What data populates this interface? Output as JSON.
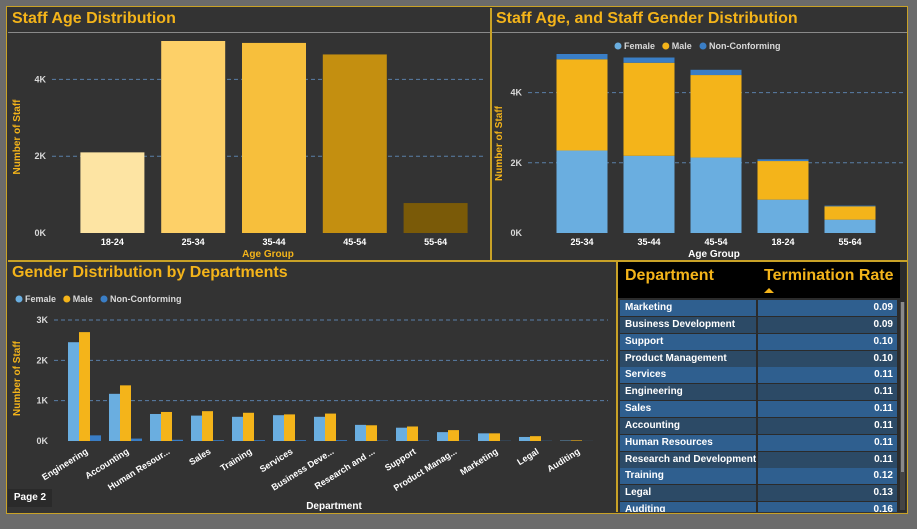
{
  "page": {
    "label": "Page 2"
  },
  "colors": {
    "female": "#6aaee0",
    "male": "#f4b41a",
    "nonconforming": "#3a7ec6",
    "title": "#f4b41a",
    "table_header_bg": "#000000"
  },
  "chart_data": [
    {
      "id": "age-dist",
      "type": "bar",
      "title": "Staff Age Distribution",
      "xlabel": "Age Group",
      "ylabel": "Number of Staff",
      "categories": [
        "18-24",
        "25-34",
        "35-44",
        "45-54",
        "55-64"
      ],
      "values": [
        2100,
        5000,
        4950,
        4650,
        780
      ],
      "bar_colors": [
        "#fde4a3",
        "#fdd068",
        "#f7bf3c",
        "#c48f10",
        "#7a5a08"
      ],
      "yticks": [
        "0K",
        "2K",
        "4K"
      ],
      "ytick_values": [
        0,
        2000,
        4000
      ],
      "ylim": [
        0,
        5000
      ],
      "grid": true
    },
    {
      "id": "age-gender",
      "type": "bar",
      "stacked": true,
      "title": "Staff Age, and Staff Gender Distribution",
      "xlabel": "Age Group",
      "ylabel": "Number of Staff",
      "categories": [
        "25-34",
        "35-44",
        "45-54",
        "18-24",
        "55-64"
      ],
      "series": [
        {
          "name": "Female",
          "values": [
            2350,
            2200,
            2150,
            950,
            380
          ]
        },
        {
          "name": "Male",
          "values": [
            2600,
            2650,
            2350,
            1100,
            380
          ]
        },
        {
          "name": "Non-Conforming",
          "values": [
            150,
            150,
            150,
            50,
            20
          ]
        }
      ],
      "yticks": [
        "0K",
        "2K",
        "4K"
      ],
      "ytick_values": [
        0,
        2000,
        4000
      ],
      "ylim": [
        0,
        5100
      ],
      "legend": "top-center",
      "grid": true
    },
    {
      "id": "gender-dept",
      "type": "bar",
      "title": "Gender Distribution by Departments",
      "xlabel": "Department",
      "ylabel": "Number of Staff",
      "categories": [
        "Engineering",
        "Accounting",
        "Human Resour...",
        "Sales",
        "Training",
        "Services",
        "Business Deve...",
        "Research and ...",
        "Support",
        "Product Manag...",
        "Marketing",
        "Legal",
        "Auditing"
      ],
      "series": [
        {
          "name": "Female",
          "values": [
            2450,
            1170,
            670,
            630,
            600,
            640,
            600,
            400,
            330,
            220,
            190,
            100,
            10
          ]
        },
        {
          "name": "Male",
          "values": [
            2700,
            1380,
            720,
            740,
            700,
            660,
            680,
            390,
            360,
            270,
            190,
            120,
            15
          ]
        },
        {
          "name": "Non-Conforming",
          "values": [
            140,
            60,
            30,
            20,
            20,
            20,
            20,
            10,
            10,
            10,
            5,
            5,
            2
          ]
        }
      ],
      "yticks": [
        "0K",
        "1K",
        "2K",
        "3K"
      ],
      "ytick_values": [
        0,
        1000,
        2000,
        3000
      ],
      "ylim": [
        0,
        3100
      ],
      "legend": "top-left",
      "grid": true
    }
  ],
  "table": {
    "headers": [
      "Department",
      "Termination Rate"
    ],
    "rows": [
      {
        "dept": "Marketing",
        "rate": "0.09"
      },
      {
        "dept": "Business Development",
        "rate": "0.09"
      },
      {
        "dept": "Support",
        "rate": "0.10"
      },
      {
        "dept": "Product Management",
        "rate": "0.10"
      },
      {
        "dept": "Services",
        "rate": "0.11"
      },
      {
        "dept": "Engineering",
        "rate": "0.11"
      },
      {
        "dept": "Sales",
        "rate": "0.11"
      },
      {
        "dept": "Accounting",
        "rate": "0.11"
      },
      {
        "dept": "Human Resources",
        "rate": "0.11"
      },
      {
        "dept": "Research and Development",
        "rate": "0.11"
      },
      {
        "dept": "Training",
        "rate": "0.12"
      },
      {
        "dept": "Legal",
        "rate": "0.13"
      },
      {
        "dept": "Auditing",
        "rate": "0.16"
      }
    ]
  }
}
